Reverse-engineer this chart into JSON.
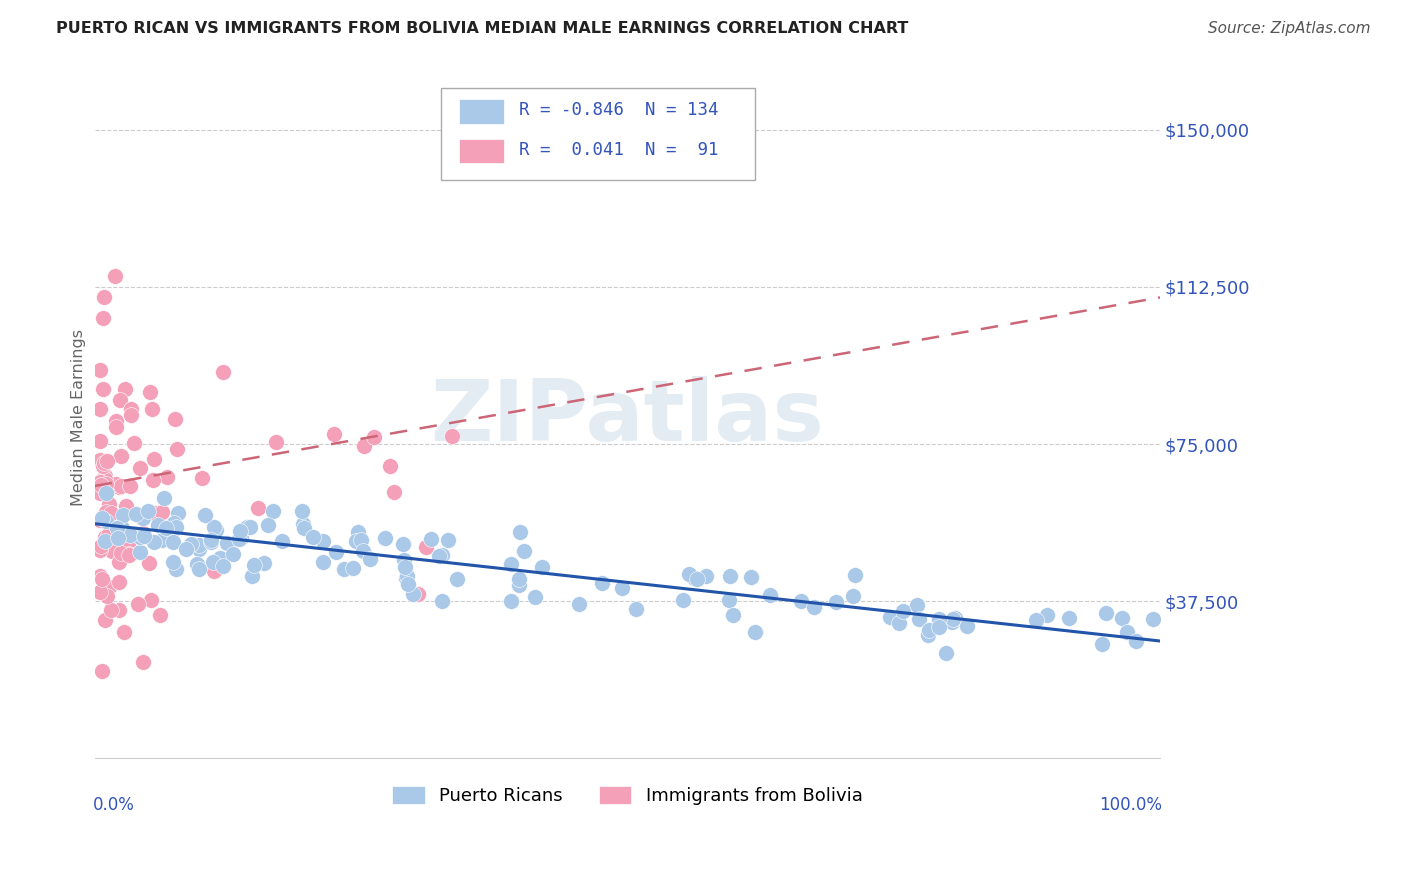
{
  "title": "PUERTO RICAN VS IMMIGRANTS FROM BOLIVIA MEDIAN MALE EARNINGS CORRELATION CHART",
  "source": "Source: ZipAtlas.com",
  "ylabel": "Median Male Earnings",
  "ytick_values": [
    37500,
    75000,
    112500,
    150000
  ],
  "ylim": [
    0,
    162500
  ],
  "xlim": [
    0.0,
    1.0
  ],
  "legend_box_labels": [
    "R = -0.846  N = 134",
    "R =  0.041  N =  91"
  ],
  "legend_bottom_labels": [
    "Puerto Ricans",
    "Immigrants from Bolivia"
  ],
  "R_blue": -0.846,
  "N_blue": 134,
  "R_pink": 0.041,
  "N_pink": 91,
  "title_color": "#222222",
  "source_color": "#555555",
  "axis_label_color": "#666666",
  "tick_color": "#3355bb",
  "grid_color": "#cccccc",
  "background_color": "#ffffff",
  "blue_dot_color": "#aac8e8",
  "pink_dot_color": "#f4a0b8",
  "blue_line_color": "#2255aa",
  "pink_line_color": "#cc6677",
  "watermark_color": "#ccdde8",
  "watermark_text": "ZIPatlas",
  "blue_trend_y0": 56000,
  "blue_trend_y1": 28000,
  "pink_trend_y0": 65000,
  "pink_trend_y1": 110000
}
